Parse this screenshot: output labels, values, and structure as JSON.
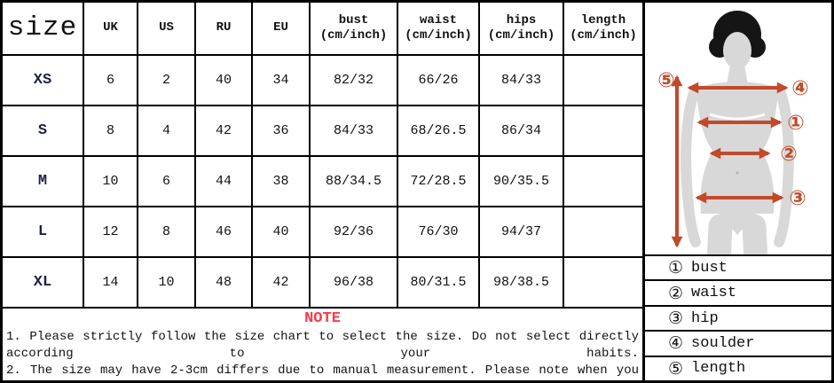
{
  "table": {
    "size_header": "size",
    "columns": [
      {
        "label": "UK",
        "sub": ""
      },
      {
        "label": "US",
        "sub": ""
      },
      {
        "label": "RU",
        "sub": ""
      },
      {
        "label": "EU",
        "sub": ""
      },
      {
        "label": "bust",
        "sub": "(cm/inch)"
      },
      {
        "label": "waist",
        "sub": "(cm/inch)"
      },
      {
        "label": "hips",
        "sub": "(cm/inch)"
      },
      {
        "label": "length",
        "sub": "(cm/inch)"
      }
    ],
    "rows": [
      {
        "size": "XS",
        "values": [
          "6",
          "2",
          "40",
          "34",
          "82/32",
          "66/26",
          "84/33",
          ""
        ]
      },
      {
        "size": "S",
        "values": [
          "8",
          "4",
          "42",
          "36",
          "84/33",
          "68/26.5",
          "86/34",
          ""
        ]
      },
      {
        "size": "M",
        "values": [
          "10",
          "6",
          "44",
          "38",
          "88/34.5",
          "72/28.5",
          "90/35.5",
          ""
        ]
      },
      {
        "size": "L",
        "values": [
          "12",
          "8",
          "46",
          "40",
          "92/36",
          "76/30",
          "94/37",
          ""
        ]
      },
      {
        "size": "XL",
        "values": [
          "14",
          "10",
          "48",
          "42",
          "96/38",
          "80/31.5",
          "98/38.5",
          ""
        ]
      }
    ]
  },
  "note": {
    "title": "NOTE",
    "lines": [
      "1. Please strictly follow the size chart to select the size. Do not select directly",
      "according to your habits.",
      "2. The size may have 2-3cm differs due to manual measurement. Please note when you"
    ]
  },
  "diagram": {
    "markers": {
      "bust": "①",
      "waist": "②",
      "hip": "③",
      "shoulder": "④",
      "length": "⑤"
    }
  },
  "legend": {
    "items": [
      {
        "num": "①",
        "label": "bust"
      },
      {
        "num": "②",
        "label": "waist"
      },
      {
        "num": "③",
        "label": "hip"
      },
      {
        "num": "④",
        "label": "soulder"
      },
      {
        "num": "⑤",
        "label": "length"
      }
    ]
  },
  "colors": {
    "note_red": "#fa3a4a",
    "arrow": "#c2492a",
    "body_gray": "#d8d8d8",
    "hair_black": "#151515",
    "size_label": "#1d2145"
  }
}
